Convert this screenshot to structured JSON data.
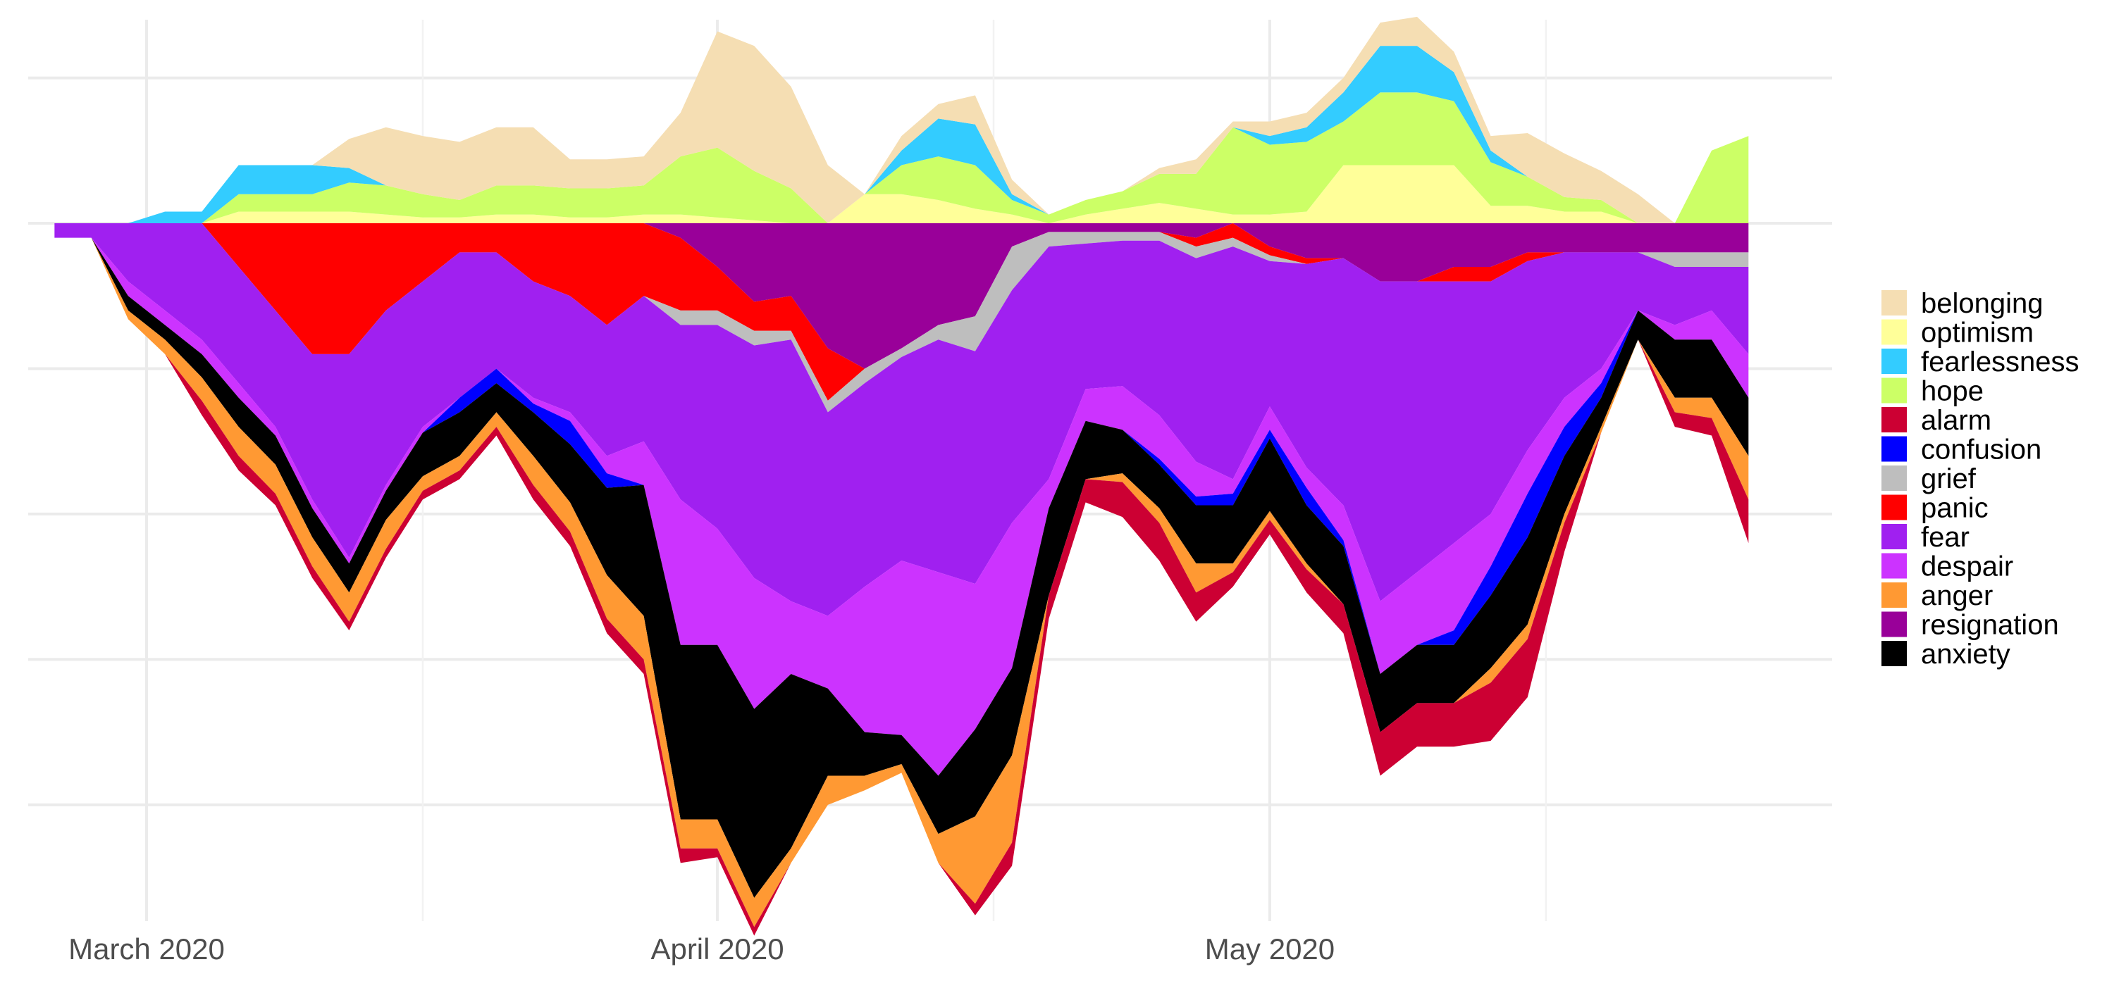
{
  "chart_data": {
    "type": "area",
    "subtype": "diverging stacked streamgraph",
    "title": "",
    "xlabel": "",
    "ylabel": "",
    "y_tick_labels": false,
    "grid": true,
    "legend_position": "right",
    "x": [
      "2020-02-25",
      "2020-02-27",
      "2020-02-29",
      "2020-03-02",
      "2020-03-04",
      "2020-03-06",
      "2020-03-08",
      "2020-03-10",
      "2020-03-12",
      "2020-03-14",
      "2020-03-16",
      "2020-03-18",
      "2020-03-20",
      "2020-03-22",
      "2020-03-24",
      "2020-03-26",
      "2020-03-28",
      "2020-03-30",
      "2020-04-01",
      "2020-04-03",
      "2020-04-05",
      "2020-04-07",
      "2020-04-09",
      "2020-04-11",
      "2020-04-13",
      "2020-04-15",
      "2020-04-17",
      "2020-04-19",
      "2020-04-21",
      "2020-04-23",
      "2020-04-25",
      "2020-04-27",
      "2020-04-29",
      "2020-05-01",
      "2020-05-03",
      "2020-05-05",
      "2020-05-07",
      "2020-05-09",
      "2020-05-11",
      "2020-05-13",
      "2020-05-15",
      "2020-05-17",
      "2020-05-19",
      "2020-05-21",
      "2020-05-23",
      "2020-05-25",
      "2020-05-27"
    ],
    "x_tick_labels": [
      {
        "date": "2020-03-01",
        "label": "March 2020"
      },
      {
        "date": "2020-04-01",
        "label": "April 2020"
      },
      {
        "date": "2020-05-01",
        "label": "May 2020"
      }
    ],
    "x_minor_grid_dates": [
      "2020-03-16",
      "2020-04-16",
      "2020-05-16"
    ],
    "y_grid_levels": [
      5,
      0,
      -5,
      -10,
      -15,
      -20
    ],
    "ylim": [
      -24,
      7
    ],
    "positive_series": [
      {
        "name": "optimism",
        "color": "#FFFF99",
        "values": [
          0,
          0,
          0,
          0,
          0,
          0.4,
          0.4,
          0.4,
          0.4,
          0.3,
          0.2,
          0.2,
          0.3,
          0.3,
          0.2,
          0.2,
          0.3,
          0.3,
          0.2,
          0.1,
          0,
          0,
          1,
          1,
          0.8,
          0.5,
          0.3,
          0,
          0.3,
          0.5,
          0.7,
          0.5,
          0.3,
          0.3,
          0.4,
          2,
          2,
          2,
          2,
          0.6,
          0.6,
          0.4,
          0.4,
          0,
          0,
          0,
          0
        ]
      },
      {
        "name": "hope",
        "color": "#CCFF66",
        "values": [
          0,
          0,
          0,
          0,
          0,
          0.6,
          0.6,
          0.6,
          1,
          1,
          0.8,
          0.6,
          1,
          1,
          1,
          1,
          1,
          2,
          2.4,
          1.7,
          1.2,
          0,
          0,
          1,
          1.5,
          1.5,
          0.5,
          0.3,
          0.5,
          0.6,
          1,
          1.2,
          3,
          2.4,
          2.4,
          1.5,
          2.5,
          2.5,
          2.2,
          1.5,
          1,
          0.5,
          0.4,
          0,
          0,
          2.5,
          3
        ]
      },
      {
        "name": "fearlessness",
        "color": "#33CCFF",
        "values": [
          0,
          0,
          0,
          0.4,
          0.4,
          1,
          1,
          1,
          0.5,
          0,
          0,
          0,
          0,
          0,
          0,
          0,
          0,
          0,
          0,
          0,
          0,
          0,
          0,
          0.5,
          1.3,
          1.4,
          0.2,
          0,
          0,
          0,
          0,
          0,
          0,
          0.3,
          0.5,
          1,
          1.6,
          1.6,
          1,
          0.4,
          0,
          0,
          0,
          0,
          0,
          0,
          0
        ]
      },
      {
        "name": "belonging",
        "color": "#F5DEB3",
        "values": [
          0,
          0,
          0,
          0,
          0,
          0,
          0,
          0,
          1,
          2,
          2,
          2,
          2,
          2,
          1,
          1,
          1,
          1.5,
          4,
          4.3,
          3.5,
          2,
          0,
          0.5,
          0.5,
          1,
          0.5,
          0,
          0,
          0,
          0.2,
          0.5,
          0.2,
          0.5,
          0.5,
          0.5,
          0.8,
          1,
          0.7,
          0.5,
          1.5,
          1.5,
          1,
          1,
          0,
          0,
          0
        ]
      }
    ],
    "negative_series": [
      {
        "name": "resignation",
        "color": "#990099",
        "values": [
          0,
          0,
          0,
          0,
          0,
          0,
          0,
          0,
          0,
          0,
          0,
          0,
          0,
          0,
          0,
          0,
          0,
          0.5,
          1.5,
          2.7,
          2.5,
          4.3,
          5,
          4.3,
          3.5,
          3.2,
          0.8,
          0.3,
          0.3,
          0.3,
          0.3,
          0.5,
          0,
          0.8,
          1.2,
          1.2,
          2,
          2,
          1.5,
          1.5,
          1,
          1,
          1,
          1,
          1,
          1,
          1
        ]
      },
      {
        "name": "panic",
        "color": "#FF0000",
        "values": [
          0,
          0,
          0,
          0,
          0,
          1.5,
          3,
          4.5,
          4.5,
          3,
          2,
          1,
          1,
          2,
          2.5,
          3.5,
          2.5,
          2.5,
          1.5,
          1,
          1.2,
          1.8,
          0,
          0,
          0,
          0,
          0,
          0,
          0,
          0,
          0,
          0.3,
          0.5,
          0.3,
          0.2,
          0,
          0,
          0,
          0.5,
          0.5,
          0.3,
          0,
          0,
          0,
          0,
          0,
          0
        ]
      },
      {
        "name": "grief",
        "color": "#BEBEBE",
        "values": [
          0,
          0,
          0,
          0,
          0,
          0,
          0,
          0,
          0,
          0,
          0,
          0,
          0,
          0,
          0,
          0,
          0,
          0.5,
          0.5,
          0.5,
          0.3,
          0.4,
          0.5,
          0.3,
          0.5,
          1.2,
          1.5,
          0.5,
          0.4,
          0.3,
          0.3,
          0.4,
          0.3,
          0.2,
          0,
          0,
          0,
          0,
          0,
          0,
          0,
          0,
          0,
          0,
          0.5,
          0.5,
          0.5
        ]
      },
      {
        "name": "fear",
        "color": "#A020F0",
        "values": [
          0.5,
          0.5,
          2,
          3,
          4,
          4,
          4,
          5,
          7,
          6,
          5,
          5,
          4,
          4,
          4,
          4.5,
          5,
          6,
          7,
          8,
          9,
          7,
          7,
          7,
          8,
          8,
          8,
          8,
          5,
          5,
          6,
          7,
          8,
          5,
          7,
          8.5,
          11,
          10,
          9,
          8,
          6.5,
          5,
          4,
          2,
          2,
          1.5,
          3
        ]
      },
      {
        "name": "despair",
        "color": "#CC33FF",
        "values": [
          0,
          0,
          0.5,
          0.5,
          0.5,
          0.5,
          0.3,
          0.3,
          0.2,
          0.2,
          0.2,
          0,
          0,
          0.2,
          0.3,
          0.6,
          1.5,
          5,
          4,
          4.5,
          2.5,
          2.5,
          5,
          6,
          7,
          5,
          5,
          1,
          1.1,
          1.5,
          1.5,
          1.2,
          0.5,
          0.8,
          0.7,
          1.2,
          2.5,
          2.5,
          3,
          1.8,
          1.5,
          1,
          0.5,
          0,
          0.5,
          1,
          1.5
        ]
      },
      {
        "name": "confusion",
        "color": "#0000FF",
        "values": [
          0,
          0,
          0,
          0,
          0,
          0,
          0,
          0,
          0,
          0,
          0,
          0.5,
          0.5,
          0.3,
          0.8,
          0.5,
          0,
          0,
          0,
          0,
          0,
          0,
          0,
          0,
          0,
          0,
          0,
          0,
          0,
          0,
          0.2,
          0.3,
          0.4,
          0.3,
          0.6,
          0.2,
          0,
          0,
          0.5,
          1,
          1.5,
          1,
          0.5,
          0,
          0,
          0,
          0
        ]
      },
      {
        "name": "anxiety",
        "color": "#000000",
        "values": [
          0,
          0,
          0.5,
          0.5,
          0.8,
          1,
          1,
          1,
          1,
          1,
          1.5,
          1.5,
          1,
          1.5,
          2,
          3,
          4.5,
          6,
          6,
          6.5,
          6,
          3,
          1.5,
          1,
          2,
          3,
          3,
          3,
          2,
          1.5,
          1.5,
          2,
          2,
          2.5,
          2,
          2,
          2,
          2,
          2,
          2.5,
          3,
          2,
          1,
          1,
          2,
          2,
          2
        ]
      },
      {
        "name": "anger",
        "color": "#FF9933",
        "values": [
          0,
          0,
          0.3,
          0.5,
          0.8,
          1,
          1,
          1,
          1,
          1,
          0.5,
          0.5,
          0.5,
          1,
          1,
          1.5,
          1.5,
          1,
          1,
          1,
          0.5,
          1,
          0.5,
          0.3,
          1,
          3,
          3,
          0,
          0,
          0.3,
          0.5,
          1,
          0.3,
          0.3,
          0.2,
          0,
          0,
          0,
          0,
          0.5,
          0.5,
          0.3,
          0.2,
          0,
          0.5,
          0.7,
          1.5
        ]
      },
      {
        "name": "alarm",
        "color": "#CC0033",
        "values": [
          0,
          0,
          0,
          0,
          0.5,
          0.5,
          0.4,
          0.4,
          0.3,
          0.3,
          0.3,
          0.3,
          0.3,
          0.5,
          0.5,
          0.5,
          0.5,
          0.5,
          0.3,
          0.3,
          0,
          0,
          0,
          0,
          0,
          0.4,
          0.8,
          0.8,
          0.8,
          1.2,
          1.3,
          1,
          0.5,
          0.5,
          0.8,
          1,
          1.5,
          1.5,
          1.5,
          2,
          2,
          1,
          0,
          0,
          0.5,
          0.6,
          1.5
        ]
      }
    ],
    "legend_order": [
      "belonging",
      "optimism",
      "fearlessness",
      "hope",
      "alarm",
      "confusion",
      "grief",
      "panic",
      "fear",
      "despair",
      "anger",
      "resignation",
      "anxiety"
    ],
    "legend_colors": {
      "belonging": "#F5DEB3",
      "optimism": "#FFFF99",
      "fearlessness": "#33CCFF",
      "hope": "#CCFF66",
      "alarm": "#CC0033",
      "confusion": "#0000FF",
      "grief": "#BEBEBE",
      "panic": "#FF0000",
      "fear": "#A020F0",
      "despair": "#CC33FF",
      "anger": "#FF9933",
      "resignation": "#990099",
      "anxiety": "#000000"
    }
  }
}
